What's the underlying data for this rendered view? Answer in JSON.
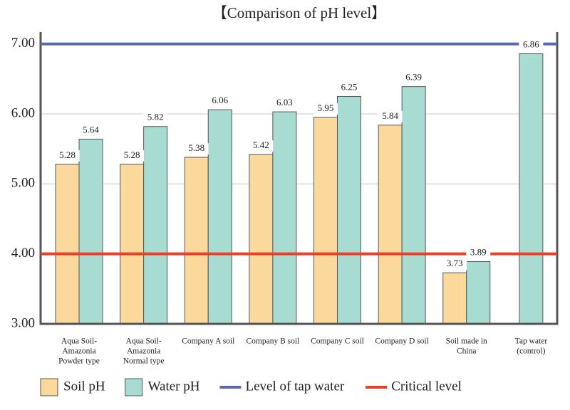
{
  "chart_data": {
    "type": "bar",
    "title": "【Comparison of pH level】",
    "categories": [
      [
        "Aqua Soil-",
        "Amazonia",
        "Powder type"
      ],
      [
        "Aqua Soil-",
        "Amazonia",
        "Normal type"
      ],
      [
        "Company A soil"
      ],
      [
        "Company B soil"
      ],
      [
        "Company C soil"
      ],
      [
        "Company D soil"
      ],
      [
        "Soil made in",
        "China"
      ],
      [
        "Tap water",
        "(control)"
      ]
    ],
    "series": [
      {
        "name": "Soil pH",
        "color": "#fbd89c",
        "values": [
          5.28,
          5.28,
          5.38,
          5.42,
          5.95,
          5.84,
          3.73,
          null
        ]
      },
      {
        "name": "Water pH",
        "color": "#a8dcd3",
        "values": [
          5.64,
          5.82,
          6.06,
          6.03,
          6.25,
          6.39,
          3.89,
          6.86
        ]
      }
    ],
    "reference_lines": [
      {
        "name": "Level of tap water",
        "value": 7,
        "color": "#5b68b4"
      },
      {
        "name": "Critical level",
        "value": 4,
        "color": "#e8402a"
      }
    ],
    "ylim": [
      3,
      7.17
    ],
    "yticks": [
      {
        "value": 3,
        "label": "3.00"
      },
      {
        "value": 4,
        "label": "4.00"
      },
      {
        "value": 5,
        "label": "5.00"
      },
      {
        "value": 6,
        "label": "6.00"
      },
      {
        "value": 7,
        "label": "7.00"
      }
    ],
    "grid": true,
    "legend": "bottom"
  }
}
